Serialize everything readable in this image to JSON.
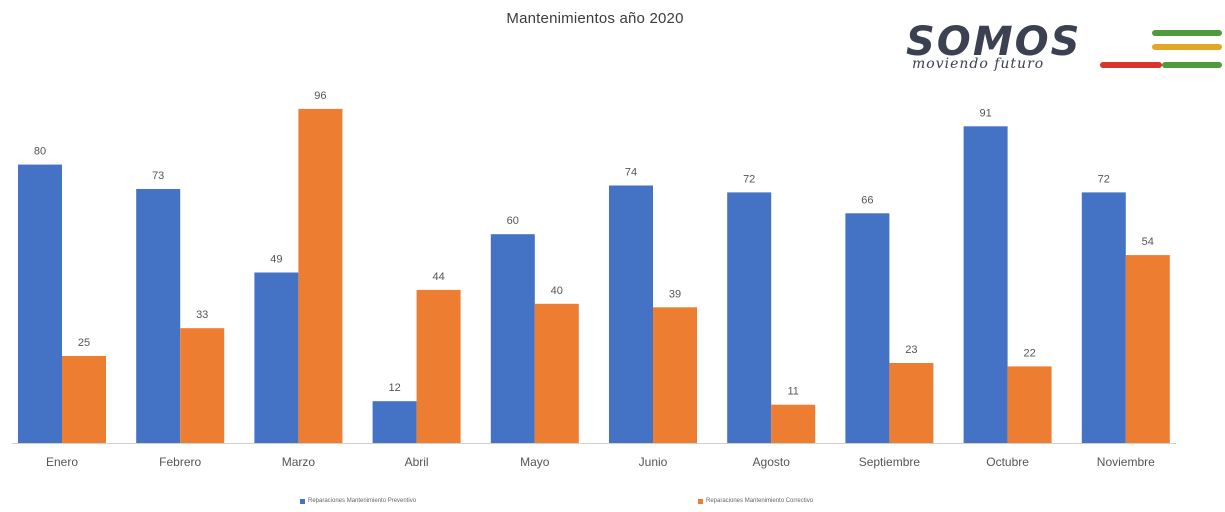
{
  "colors": {
    "preventivo": "#4472c4",
    "correctivo": "#ed7d31",
    "axis": "#d0d0d0",
    "logo_text": "#3b4150",
    "logo_green": "#4f9a3c",
    "logo_yellow": "#e3a726",
    "logo_red": "#d7342b"
  },
  "logo": {
    "word": "SOMOS",
    "tagline": "moviendo futuro"
  },
  "chart_data": {
    "type": "bar",
    "title": "Mantenimientos año 2020",
    "xlabel": "",
    "ylabel": "",
    "ylim": [
      0,
      100
    ],
    "grid": false,
    "legend_position": "bottom",
    "categories": [
      "Enero",
      "Febrero",
      "Marzo",
      "Abril",
      "Mayo",
      "Junio",
      "Agosto",
      "Septiembre",
      "Octubre",
      "Noviembre"
    ],
    "series": [
      {
        "name": "Reparaciones Mantenimiento Preventivo",
        "color_key": "preventivo",
        "values": [
          80,
          73,
          49,
          12,
          60,
          74,
          72,
          66,
          91,
          72
        ]
      },
      {
        "name": "Reparaciones Mantenimiento Correctivo",
        "color_key": "correctivo",
        "values": [
          25,
          33,
          96,
          44,
          40,
          39,
          11,
          23,
          22,
          54
        ]
      }
    ]
  }
}
